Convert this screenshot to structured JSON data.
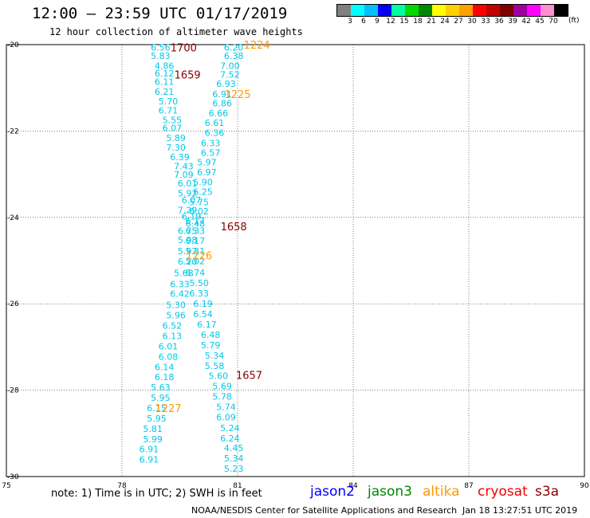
{
  "header": {
    "title": "12:00 – 23:59 UTC 01/17/2019",
    "subtitle": "12 hour collection of altimeter wave heights"
  },
  "legend": {
    "colors": [
      "#808080",
      "#00ffff",
      "#00c0ff",
      "#0000ff",
      "#00ffa0",
      "#00d800",
      "#008800",
      "#ffff00",
      "#ffd000",
      "#ffa000",
      "#ff0000",
      "#c00000",
      "#800000",
      "#a000a0",
      "#ff00ff",
      "#ff90d0",
      "#000000"
    ],
    "labels": [
      "3",
      "6",
      "9",
      "12",
      "15",
      "18",
      "21",
      "24",
      "27",
      "30",
      "33",
      "36",
      "39",
      "42",
      "45",
      "70"
    ],
    "unit": "(ft)"
  },
  "footer": {
    "note": "note: 1) Time is in UTC; 2) SWH is in feet",
    "satellites": [
      {
        "name": "jason2",
        "color": "#0000ff"
      },
      {
        "name": "jason3",
        "color": "#008800"
      },
      {
        "name": "altika",
        "color": "#ff9900"
      },
      {
        "name": "cryosat",
        "color": "#ee0000"
      },
      {
        "name": "s3a",
        "color": "#880000"
      }
    ],
    "credit": "NOAA/NESDIS Center for Satellite Applications and Research",
    "timestamp": "Jan 18 13:27:51 UTC 2019"
  },
  "chart_data": {
    "type": "scatter",
    "title": "12:00 – 23:59 UTC 01/17/2019",
    "subtitle": "12 hour collection of altimeter wave heights",
    "xlim": [
      75,
      90
    ],
    "ylim": [
      -30,
      -20
    ],
    "xticks": [
      "75",
      "78",
      "81",
      "84",
      "87",
      "90"
    ],
    "yticks": [
      "-20",
      "-22",
      "-24",
      "-26",
      "-28",
      "-30"
    ],
    "grid": true,
    "value_color": "#00c8e8",
    "points": [
      {
        "x": 79.0,
        "y": -20.06,
        "v": "6.56"
      },
      {
        "x": 79.0,
        "y": -20.26,
        "v": "5.83"
      },
      {
        "x": 79.1,
        "y": -20.49,
        "v": "4.86"
      },
      {
        "x": 79.1,
        "y": -20.66,
        "v": "6.12"
      },
      {
        "x": 79.1,
        "y": -20.86,
        "v": "6.11"
      },
      {
        "x": 79.1,
        "y": -21.09,
        "v": "6.21"
      },
      {
        "x": 79.2,
        "y": -21.31,
        "v": "5.70"
      },
      {
        "x": 79.2,
        "y": -21.52,
        "v": "6.71"
      },
      {
        "x": 79.3,
        "y": -21.74,
        "v": "5.55"
      },
      {
        "x": 79.3,
        "y": -21.93,
        "v": "6.07"
      },
      {
        "x": 79.4,
        "y": -22.16,
        "v": "5.89"
      },
      {
        "x": 79.4,
        "y": -22.38,
        "v": "7.30"
      },
      {
        "x": 79.5,
        "y": -22.6,
        "v": "6.39"
      },
      {
        "x": 79.6,
        "y": -22.81,
        "v": "7.43"
      },
      {
        "x": 79.6,
        "y": -23.01,
        "v": "7.09"
      },
      {
        "x": 79.7,
        "y": -23.21,
        "v": "6.01"
      },
      {
        "x": 79.7,
        "y": -23.44,
        "v": "5.92"
      },
      {
        "x": 79.8,
        "y": -23.6,
        "v": "6.07"
      },
      {
        "x": 79.7,
        "y": -23.83,
        "v": "7.29"
      },
      {
        "x": 79.8,
        "y": -23.98,
        "v": "6.19"
      },
      {
        "x": 79.9,
        "y": -24.14,
        "v": "6.48"
      },
      {
        "x": 79.7,
        "y": -24.31,
        "v": "6.75"
      },
      {
        "x": 79.7,
        "y": -24.52,
        "v": "5.98"
      },
      {
        "x": 79.7,
        "y": -24.78,
        "v": "5.97"
      },
      {
        "x": 79.7,
        "y": -25.02,
        "v": "6.20"
      },
      {
        "x": 79.6,
        "y": -25.29,
        "v": "5.68"
      },
      {
        "x": 79.5,
        "y": -25.54,
        "v": "6.33"
      },
      {
        "x": 79.5,
        "y": -25.77,
        "v": "6.42"
      },
      {
        "x": 79.4,
        "y": -26.02,
        "v": "5.30"
      },
      {
        "x": 79.4,
        "y": -26.26,
        "v": "5.96"
      },
      {
        "x": 79.3,
        "y": -26.5,
        "v": "6.52"
      },
      {
        "x": 79.3,
        "y": -26.74,
        "v": "6.13"
      },
      {
        "x": 79.2,
        "y": -26.98,
        "v": "6.01"
      },
      {
        "x": 79.2,
        "y": -27.22,
        "v": "6.08"
      },
      {
        "x": 79.1,
        "y": -27.46,
        "v": "6.14"
      },
      {
        "x": 79.1,
        "y": -27.69,
        "v": "6.18"
      },
      {
        "x": 79.0,
        "y": -27.93,
        "v": "5.63"
      },
      {
        "x": 79.0,
        "y": -28.17,
        "v": "5.95"
      },
      {
        "x": 78.9,
        "y": -28.41,
        "v": "6.15"
      },
      {
        "x": 78.9,
        "y": -28.65,
        "v": "5.95"
      },
      {
        "x": 78.8,
        "y": -28.89,
        "v": "5.81"
      },
      {
        "x": 78.8,
        "y": -29.13,
        "v": "5.99"
      },
      {
        "x": 78.7,
        "y": -29.36,
        "v": "6.91"
      },
      {
        "x": 78.7,
        "y": -29.6,
        "v": "6.91"
      },
      {
        "x": 80.9,
        "y": -20.06,
        "v": "6.20"
      },
      {
        "x": 80.9,
        "y": -20.26,
        "v": "6.38"
      },
      {
        "x": 80.8,
        "y": -20.49,
        "v": "7.00"
      },
      {
        "x": 80.8,
        "y": -20.69,
        "v": "7.52"
      },
      {
        "x": 80.7,
        "y": -20.9,
        "v": "6.93"
      },
      {
        "x": 80.6,
        "y": -21.14,
        "v": "6.91"
      },
      {
        "x": 80.6,
        "y": -21.36,
        "v": "6.86"
      },
      {
        "x": 80.5,
        "y": -21.59,
        "v": "6.66"
      },
      {
        "x": 80.4,
        "y": -21.81,
        "v": "6.61"
      },
      {
        "x": 80.4,
        "y": -22.04,
        "v": "6.36"
      },
      {
        "x": 80.3,
        "y": -22.28,
        "v": "6.33"
      },
      {
        "x": 80.3,
        "y": -22.5,
        "v": "6.57"
      },
      {
        "x": 80.2,
        "y": -22.72,
        "v": "5.97"
      },
      {
        "x": 80.2,
        "y": -22.95,
        "v": "6.97"
      },
      {
        "x": 80.1,
        "y": -23.18,
        "v": "5.90"
      },
      {
        "x": 80.1,
        "y": -23.4,
        "v": "6.25"
      },
      {
        "x": 80.0,
        "y": -23.64,
        "v": "5.75"
      },
      {
        "x": 80.0,
        "y": -23.86,
        "v": "6.02"
      },
      {
        "x": 79.9,
        "y": -24.08,
        "v": "6.17"
      },
      {
        "x": 79.9,
        "y": -24.31,
        "v": "6.33"
      },
      {
        "x": 79.9,
        "y": -24.54,
        "v": "6.17"
      },
      {
        "x": 79.9,
        "y": -24.78,
        "v": "5.31"
      },
      {
        "x": 79.9,
        "y": -25.01,
        "v": "5.02"
      },
      {
        "x": 79.9,
        "y": -25.28,
        "v": "6.74"
      },
      {
        "x": 80.0,
        "y": -25.52,
        "v": "5.50"
      },
      {
        "x": 80.0,
        "y": -25.76,
        "v": "6.33"
      },
      {
        "x": 80.1,
        "y": -26.0,
        "v": "6.19"
      },
      {
        "x": 80.1,
        "y": -26.24,
        "v": "6.54"
      },
      {
        "x": 80.2,
        "y": -26.48,
        "v": "6.17"
      },
      {
        "x": 80.3,
        "y": -26.72,
        "v": "6.48"
      },
      {
        "x": 80.3,
        "y": -26.96,
        "v": "5.79"
      },
      {
        "x": 80.4,
        "y": -27.2,
        "v": "5.34"
      },
      {
        "x": 80.4,
        "y": -27.44,
        "v": "5.58"
      },
      {
        "x": 80.5,
        "y": -27.67,
        "v": "5.60"
      },
      {
        "x": 80.6,
        "y": -27.91,
        "v": "5.69"
      },
      {
        "x": 80.6,
        "y": -28.15,
        "v": "5.78"
      },
      {
        "x": 80.7,
        "y": -28.39,
        "v": "5.74"
      },
      {
        "x": 80.7,
        "y": -28.63,
        "v": "6.09"
      },
      {
        "x": 80.8,
        "y": -28.87,
        "v": "5.24"
      },
      {
        "x": 80.8,
        "y": -29.11,
        "v": "6.24"
      },
      {
        "x": 80.9,
        "y": -29.34,
        "v": "4.45"
      },
      {
        "x": 80.9,
        "y": -29.58,
        "v": "5.34"
      },
      {
        "x": 80.9,
        "y": -29.82,
        "v": "5.23"
      }
    ],
    "time_labels": [
      {
        "x": 79.6,
        "y": -20.06,
        "t": "1700",
        "color": "#880000"
      },
      {
        "x": 81.5,
        "y": -20.0,
        "t": "1224",
        "color": "#ff9900"
      },
      {
        "x": 79.7,
        "y": -20.69,
        "t": "1659",
        "color": "#880000"
      },
      {
        "x": 81.0,
        "y": -21.14,
        "t": "1225",
        "color": "#ff9900"
      },
      {
        "x": 80.9,
        "y": -24.21,
        "t": "1658",
        "color": "#880000"
      },
      {
        "x": 80.0,
        "y": -24.88,
        "t": "1226",
        "color": "#ff9900"
      },
      {
        "x": 81.3,
        "y": -27.65,
        "t": "1657",
        "color": "#880000"
      },
      {
        "x": 79.2,
        "y": -28.41,
        "t": "1227",
        "color": "#ff9900"
      }
    ]
  }
}
